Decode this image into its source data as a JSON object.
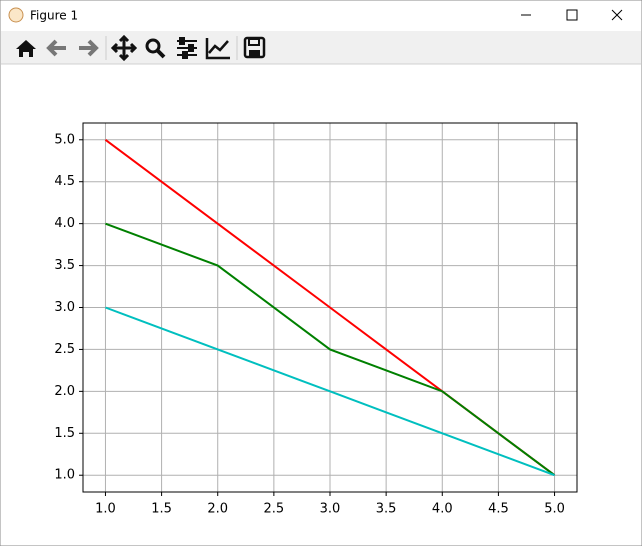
{
  "window": {
    "title": "Figure 1"
  },
  "chart_data": {
    "type": "line",
    "x": [
      1,
      2,
      3,
      4,
      5
    ],
    "series": [
      {
        "color": "#ff0000",
        "values": [
          5,
          4,
          3,
          2,
          1
        ]
      },
      {
        "color": "#008000",
        "values": [
          4,
          3.5,
          2.5,
          2,
          1
        ]
      },
      {
        "color": "#00bfbf",
        "values": [
          3,
          2.5,
          2,
          1.5,
          1
        ]
      }
    ],
    "xlim": [
      0.8,
      5.2
    ],
    "ylim": [
      0.8,
      5.2
    ],
    "xticks": [
      {
        "value": 1,
        "label": "1.0"
      },
      {
        "value": 1.5,
        "label": "1.5"
      },
      {
        "value": 2,
        "label": "2.0"
      },
      {
        "value": 2.5,
        "label": "2.5"
      },
      {
        "value": 3,
        "label": "3.0"
      },
      {
        "value": 3.5,
        "label": "3.5"
      },
      {
        "value": 4,
        "label": "4.0"
      },
      {
        "value": 4.5,
        "label": "4.5"
      },
      {
        "value": 5,
        "label": "5.0"
      }
    ],
    "yticks": [
      {
        "value": 1,
        "label": "1.0"
      },
      {
        "value": 1.5,
        "label": "1.5"
      },
      {
        "value": 2,
        "label": "2.0"
      },
      {
        "value": 2.5,
        "label": "2.5"
      },
      {
        "value": 3,
        "label": "3.0"
      },
      {
        "value": 3.5,
        "label": "3.5"
      },
      {
        "value": 4,
        "label": "4.0"
      },
      {
        "value": 4.5,
        "label": "4.5"
      },
      {
        "value": 5,
        "label": "5.0"
      }
    ],
    "grid": true
  }
}
